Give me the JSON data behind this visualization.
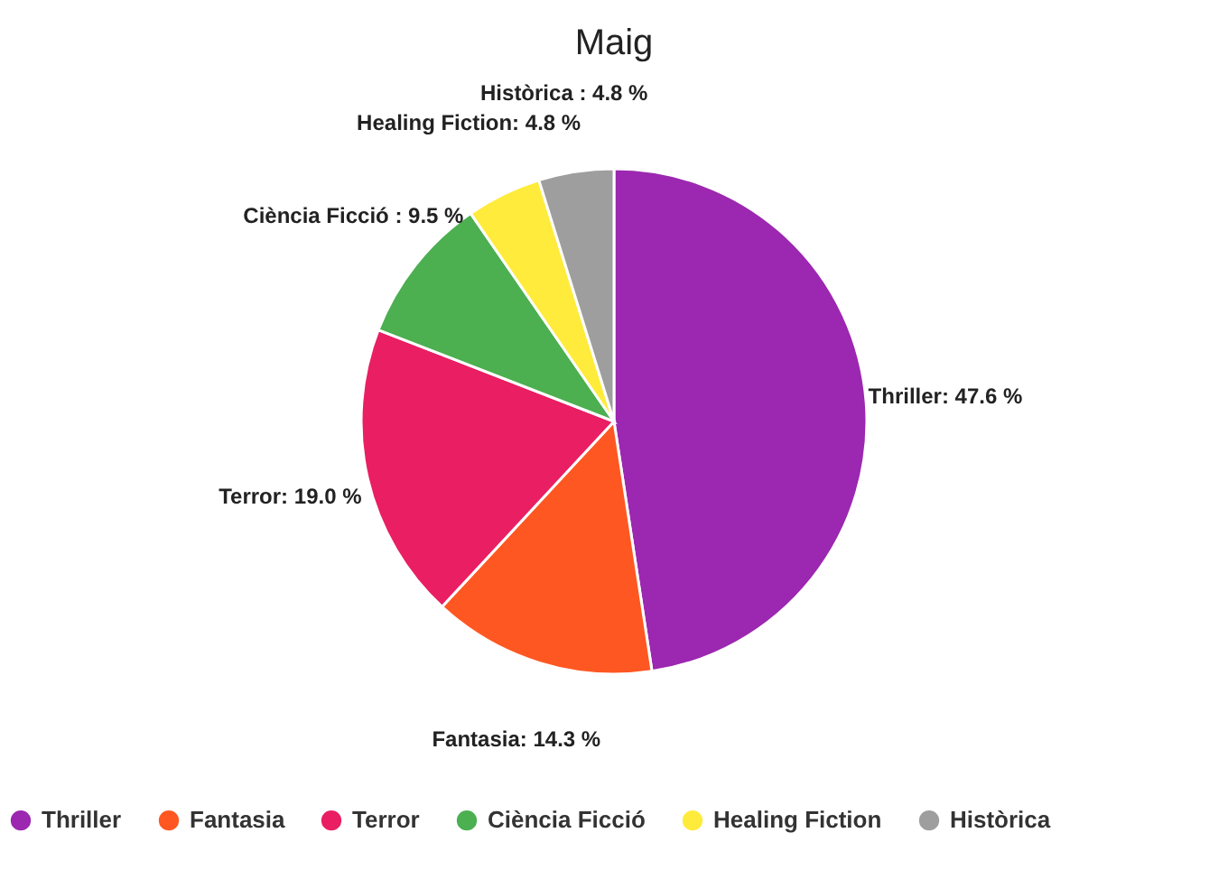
{
  "chart_data": {
    "type": "pie",
    "title": "Maig",
    "categories": [
      "Thriller",
      "Fantasia",
      "Terror",
      "Ciència Ficció",
      "Healing Fiction",
      "Històrica"
    ],
    "values": [
      47.6,
      14.3,
      19.0,
      9.5,
      4.8,
      4.8
    ],
    "colors": [
      "#9c27b0",
      "#ff5722",
      "#e91e63",
      "#4caf50",
      "#ffeb3b",
      "#9e9e9e"
    ],
    "value_labels": [
      "Thriller: 47.6 %",
      "Fantasia: 14.3 %",
      "Terror: 19.0 %",
      "Ciència Ficció : 9.5 %",
      "Healing Fiction: 4.8 %",
      "Històrica : 4.8 %"
    ],
    "legend": "bottom"
  }
}
